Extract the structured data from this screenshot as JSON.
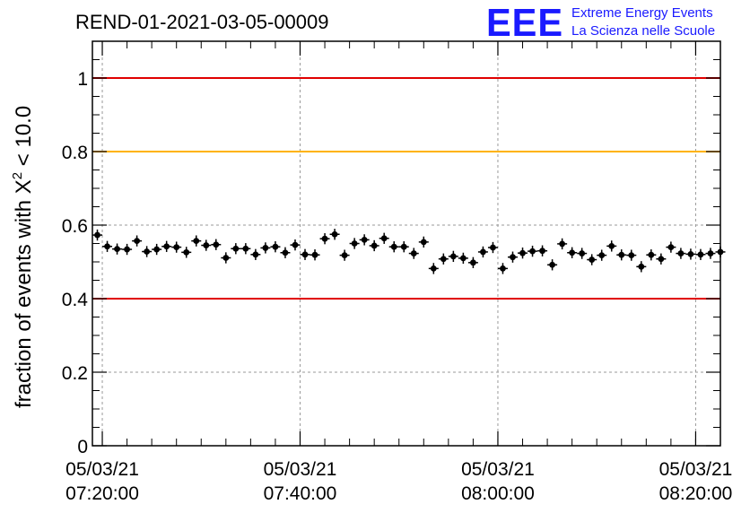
{
  "chart_data": {
    "type": "scatter",
    "title": "REND-01-2021-03-05-00009",
    "ylabel_prefix": "fraction of events with ",
    "ylabel_symbol": "X",
    "ylabel_sup": "2",
    "ylabel_suffix": " < 10.0",
    "ylim": [
      0,
      1.1
    ],
    "y_ticks": [
      {
        "value": 0,
        "label": "0"
      },
      {
        "value": 0.2,
        "label": "0.2"
      },
      {
        "value": 0.4,
        "label": "0.4"
      },
      {
        "value": 0.6,
        "label": "0.6"
      },
      {
        "value": 0.8,
        "label": "0.8"
      },
      {
        "value": 1,
        "label": "1"
      }
    ],
    "xlim": [
      "2021-03-05T07:19:00",
      "2021-03-05T08:22:30"
    ],
    "x_ticks": [
      {
        "value": "2021-03-05T07:20:00",
        "date": "05/03/21",
        "time": "07:20:00"
      },
      {
        "value": "2021-03-05T07:40:00",
        "date": "05/03/21",
        "time": "07:40:00"
      },
      {
        "value": "2021-03-05T08:00:00",
        "date": "05/03/21",
        "time": "08:00:00"
      },
      {
        "value": "2021-03-05T08:20:00",
        "date": "05/03/21",
        "time": "08:20:00"
      }
    ],
    "grid": true,
    "reference_lines": [
      {
        "y": 1.0,
        "color": "#e00000"
      },
      {
        "y": 0.8,
        "color": "#ffb300"
      },
      {
        "y": 0.4,
        "color": "#e00000"
      }
    ],
    "error": 0.015,
    "series": [
      {
        "color": "#000000",
        "x": [
          "2021-03-05T07:19:30",
          "2021-03-05T07:20:30",
          "2021-03-05T07:21:30",
          "2021-03-05T07:22:30",
          "2021-03-05T07:23:30",
          "2021-03-05T07:24:30",
          "2021-03-05T07:25:30",
          "2021-03-05T07:26:30",
          "2021-03-05T07:27:30",
          "2021-03-05T07:28:30",
          "2021-03-05T07:29:30",
          "2021-03-05T07:30:30",
          "2021-03-05T07:31:30",
          "2021-03-05T07:32:30",
          "2021-03-05T07:33:30",
          "2021-03-05T07:34:30",
          "2021-03-05T07:35:30",
          "2021-03-05T07:36:30",
          "2021-03-05T07:37:30",
          "2021-03-05T07:38:30",
          "2021-03-05T07:39:30",
          "2021-03-05T07:40:30",
          "2021-03-05T07:41:30",
          "2021-03-05T07:42:30",
          "2021-03-05T07:43:30",
          "2021-03-05T07:44:30",
          "2021-03-05T07:45:30",
          "2021-03-05T07:46:30",
          "2021-03-05T07:47:30",
          "2021-03-05T07:48:30",
          "2021-03-05T07:49:30",
          "2021-03-05T07:50:30",
          "2021-03-05T07:51:30",
          "2021-03-05T07:52:30",
          "2021-03-05T07:53:30",
          "2021-03-05T07:54:30",
          "2021-03-05T07:55:30",
          "2021-03-05T07:56:30",
          "2021-03-05T07:57:30",
          "2021-03-05T07:58:30",
          "2021-03-05T07:59:30",
          "2021-03-05T08:00:30",
          "2021-03-05T08:01:30",
          "2021-03-05T08:02:30",
          "2021-03-05T08:03:30",
          "2021-03-05T08:04:30",
          "2021-03-05T08:05:30",
          "2021-03-05T08:06:30",
          "2021-03-05T08:07:30",
          "2021-03-05T08:08:30",
          "2021-03-05T08:09:30",
          "2021-03-05T08:10:30",
          "2021-03-05T08:11:30",
          "2021-03-05T08:12:30",
          "2021-03-05T08:13:30",
          "2021-03-05T08:14:30",
          "2021-03-05T08:15:30",
          "2021-03-05T08:16:30",
          "2021-03-05T08:17:30",
          "2021-03-05T08:18:30",
          "2021-03-05T08:19:30",
          "2021-03-05T08:20:30",
          "2021-03-05T08:21:30",
          "2021-03-05T08:22:30"
        ],
        "y": [
          0.573,
          0.542,
          0.535,
          0.534,
          0.557,
          0.528,
          0.534,
          0.542,
          0.54,
          0.526,
          0.557,
          0.545,
          0.547,
          0.511,
          0.536,
          0.536,
          0.52,
          0.538,
          0.541,
          0.525,
          0.546,
          0.52,
          0.519,
          0.563,
          0.575,
          0.518,
          0.55,
          0.56,
          0.544,
          0.564,
          0.541,
          0.541,
          0.523,
          0.554,
          0.482,
          0.508,
          0.515,
          0.51,
          0.498,
          0.527,
          0.539,
          0.482,
          0.513,
          0.524,
          0.529,
          0.53,
          0.492,
          0.549,
          0.525,
          0.523,
          0.506,
          0.518,
          0.543,
          0.519,
          0.518,
          0.487,
          0.519,
          0.508,
          0.54,
          0.523,
          0.521,
          0.52,
          0.523,
          0.527
        ]
      }
    ]
  },
  "logo": {
    "mark": "EEE",
    "line1": "Extreme Energy Events",
    "line2": "La Scienza nelle Scuole",
    "color": "#1a1aff"
  }
}
